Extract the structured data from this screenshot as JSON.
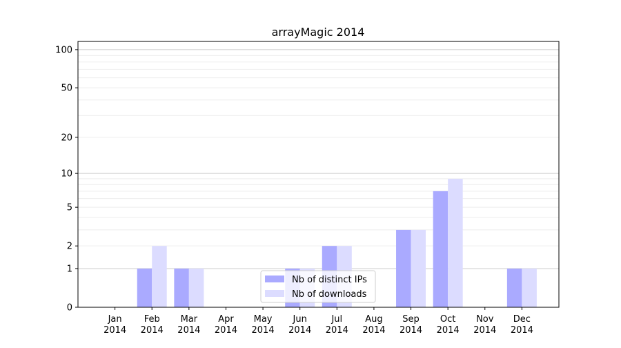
{
  "chart_data": {
    "type": "bar",
    "title": "arrayMagic 2014",
    "xlabel": "",
    "ylabel": "",
    "yscale": "symlog (log10(1+y))",
    "ylim": [
      0,
      116
    ],
    "yticks": [
      0,
      1,
      2,
      5,
      10,
      20,
      50,
      100
    ],
    "grid": true,
    "legend_position": "lower center",
    "categories": [
      "Jan\n2014",
      "Feb\n2014",
      "Mar\n2014",
      "Apr\n2014",
      "May\n2014",
      "Jun\n2014",
      "Jul\n2014",
      "Aug\n2014",
      "Sep\n2014",
      "Oct\n2014",
      "Nov\n2014",
      "Dec\n2014"
    ],
    "series": [
      {
        "name": "Nb of distinct IPs",
        "color": "#aaaaff",
        "values": [
          0,
          1,
          1,
          0,
          0,
          1,
          2,
          0,
          3,
          7,
          0,
          1
        ]
      },
      {
        "name": "Nb of downloads",
        "color": "#dcdcff",
        "values": [
          0,
          2,
          1,
          0,
          0,
          1,
          2,
          0,
          3,
          9,
          0,
          1
        ]
      }
    ]
  }
}
